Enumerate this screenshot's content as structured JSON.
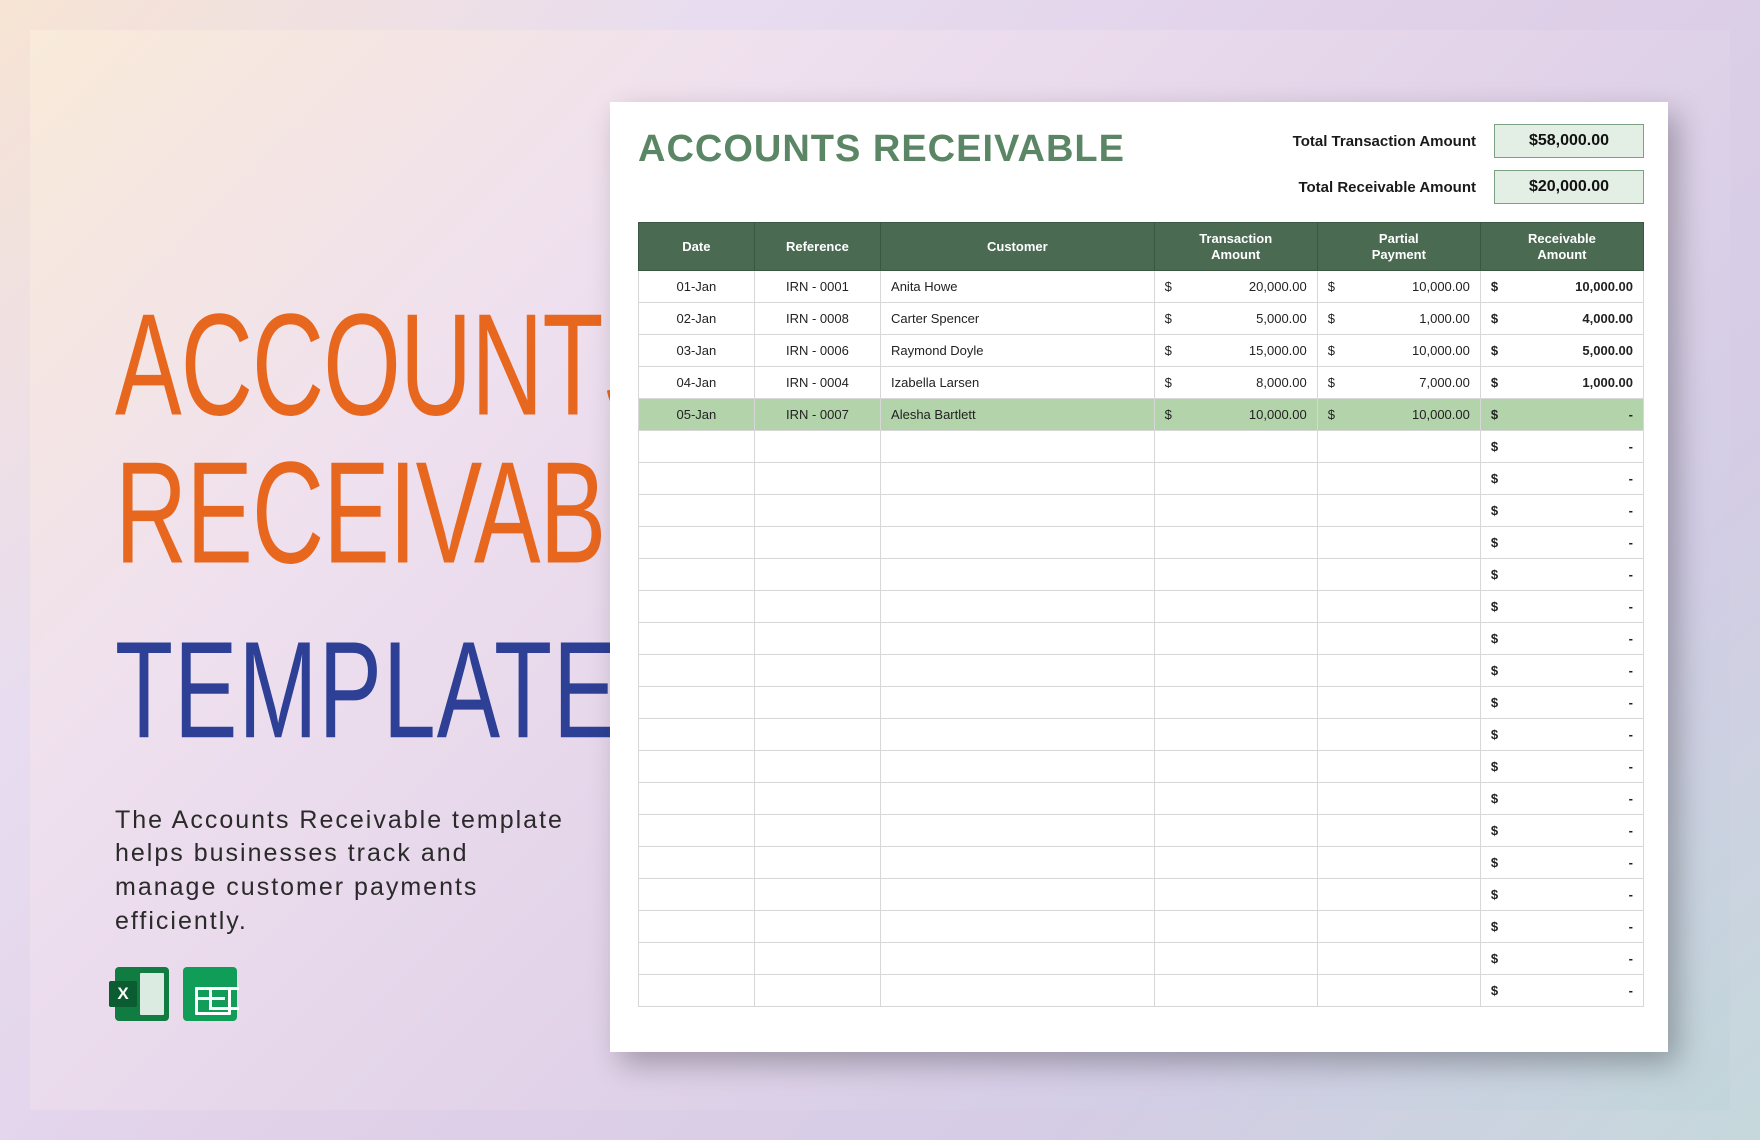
{
  "promo": {
    "title_line1": "ACCOUNTS",
    "title_line2": "RECEIVABLE",
    "title_line3": "TEMPLATE",
    "description": "The Accounts Receivable template helps businesses track and manage customer payments efficiently.",
    "colors": {
      "orange": "#e8671f",
      "blue": "#2e4095"
    }
  },
  "sheet": {
    "title": "ACCOUNTS RECEIVABLE",
    "totals": {
      "transaction_label": "Total Transaction Amount",
      "transaction_value": "$58,000.00",
      "receivable_label": "Total Receivable Amount",
      "receivable_value": "$20,000.00"
    },
    "columns": [
      "Date",
      "Reference",
      "Customer",
      "Transaction Amount",
      "Partial Payment",
      "Receivable Amount"
    ],
    "rows": [
      {
        "date": "01-Jan",
        "reference": "IRN - 0001",
        "customer": "Anita Howe",
        "transaction": "20,000.00",
        "partial": "10,000.00",
        "receivable": "10,000.00",
        "highlight": false
      },
      {
        "date": "02-Jan",
        "reference": "IRN - 0008",
        "customer": "Carter Spencer",
        "transaction": "5,000.00",
        "partial": "1,000.00",
        "receivable": "4,000.00",
        "highlight": false
      },
      {
        "date": "03-Jan",
        "reference": "IRN - 0006",
        "customer": "Raymond Doyle",
        "transaction": "15,000.00",
        "partial": "10,000.00",
        "receivable": "5,000.00",
        "highlight": false
      },
      {
        "date": "04-Jan",
        "reference": "IRN - 0004",
        "customer": "Izabella Larsen",
        "transaction": "8,000.00",
        "partial": "7,000.00",
        "receivable": "1,000.00",
        "highlight": false
      },
      {
        "date": "05-Jan",
        "reference": "IRN - 0007",
        "customer": "Alesha Bartlett",
        "transaction": "10,000.00",
        "partial": "10,000.00",
        "receivable": "-",
        "highlight": true
      }
    ],
    "empty_row_count": 18,
    "currency_symbol": "$",
    "colors": {
      "header_bg": "#4a6b52",
      "header_border": "#3a5841",
      "highlight_bg": "#b3d4aa",
      "total_box_bg": "#e3eee4",
      "total_box_border": "#7aa183",
      "cell_border": "#d7d7d7",
      "title": "#5a8665"
    }
  }
}
